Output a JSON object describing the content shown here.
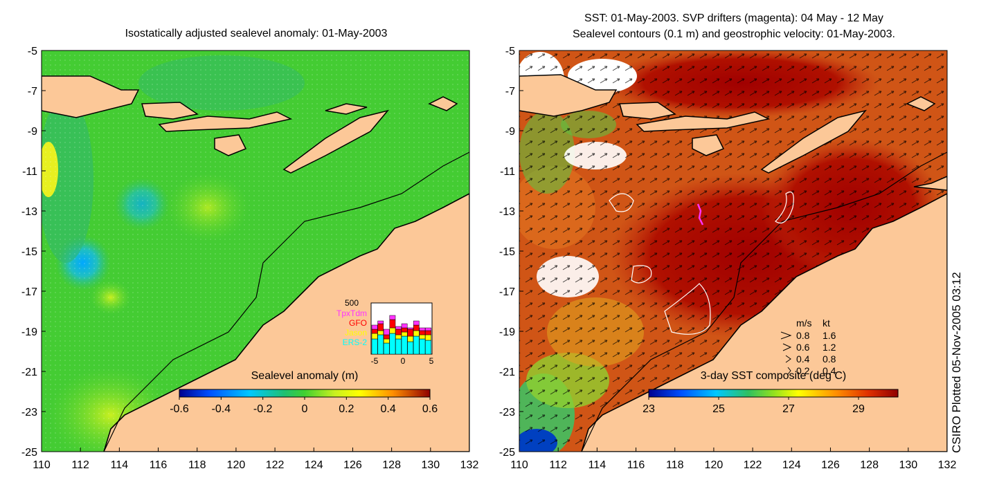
{
  "left_panel": {
    "title": "Isostatically adjusted sealevel anomaly: 01-May-2003",
    "colorbar": {
      "label": "Sealevel anomaly (m)",
      "ticks": [
        "-0.6",
        "-0.4",
        "-0.2",
        "0",
        "0.2",
        "0.4",
        "0.6"
      ]
    },
    "inset_histogram": {
      "y_tick": "500",
      "x_ticks": [
        "-5",
        "0",
        "5"
      ],
      "legend": [
        {
          "name": "TpxTdm",
          "color": "#ff33ff"
        },
        {
          "name": "GFO",
          "color": "#ff0000"
        },
        {
          "name": "Jason",
          "color": "#ffff00"
        },
        {
          "name": "ERS-2",
          "color": "#00ffff"
        }
      ]
    }
  },
  "right_panel": {
    "title_line1": "SST: 01-May-2003. SVP drifters (magenta): 04 May - 12 May",
    "title_line2": "Sealevel contours (0.1 m) and geostrophic velocity: 01-May-2003.",
    "colorbar": {
      "label": "3-day SST composite (deg C)",
      "ticks": [
        "23",
        "25",
        "27",
        "29"
      ]
    },
    "velocity_legend": {
      "header_ms": "m/s",
      "header_kt": "kt",
      "rows": [
        {
          "ms": "0.8",
          "kt": "1.6"
        },
        {
          "ms": "0.6",
          "kt": "1.2"
        },
        {
          "ms": "0.4",
          "kt": "0.8"
        },
        {
          "ms": "0.2",
          "kt": "0.4"
        }
      ]
    }
  },
  "axes": {
    "x_ticks": [
      "110",
      "112",
      "114",
      "116",
      "118",
      "120",
      "122",
      "124",
      "126",
      "128",
      "130",
      "132"
    ],
    "y_ticks": [
      "-5",
      "-7",
      "-9",
      "-11",
      "-13",
      "-15",
      "-17",
      "-19",
      "-21",
      "-23",
      "-25"
    ]
  },
  "credit": "CSIRO Plotted 05-Nov-2005 03:12",
  "colors": {
    "land": "#fcc898",
    "ocean_left": "#44cc33",
    "ocean_right": "#cc4411",
    "coastline": "#000000"
  }
}
